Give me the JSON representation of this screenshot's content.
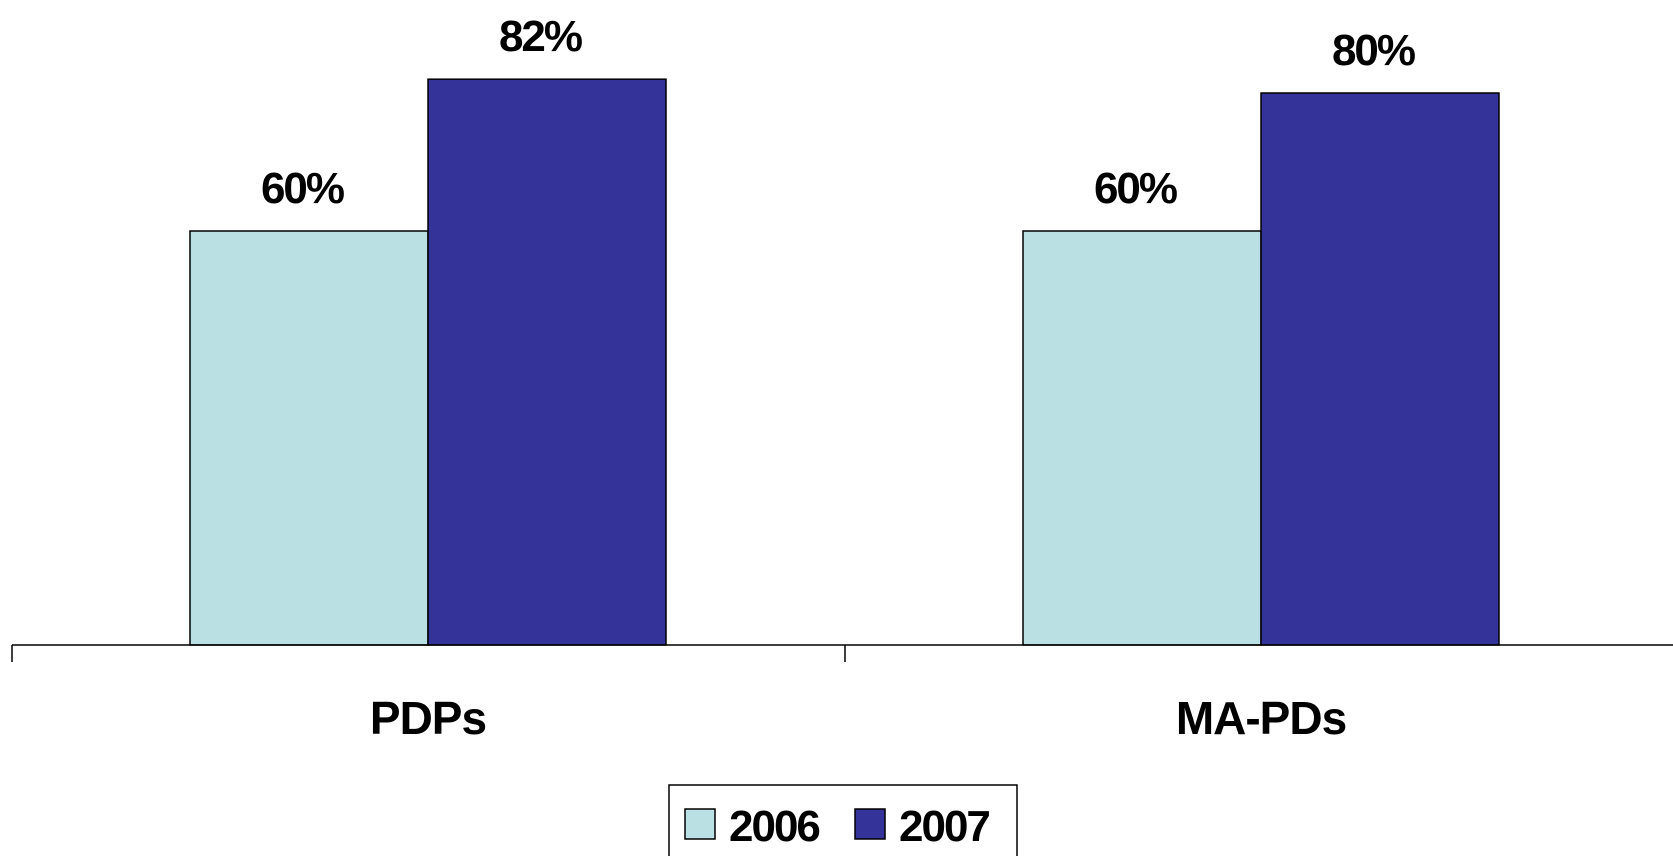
{
  "chart_data": {
    "type": "bar",
    "categories": [
      "PDPs",
      "MA-PDs"
    ],
    "series": [
      {
        "name": "2006",
        "values": [
          60,
          60
        ],
        "labels": [
          "60%",
          "60%"
        ],
        "color": "#BBE0E3"
      },
      {
        "name": "2007",
        "values": [
          82,
          80
        ],
        "labels": [
          "82%",
          "80%"
        ],
        "color": "#333399"
      }
    ],
    "unit": "%",
    "ylim": [
      0,
      100
    ],
    "grid": false,
    "legend_position": "bottom"
  }
}
